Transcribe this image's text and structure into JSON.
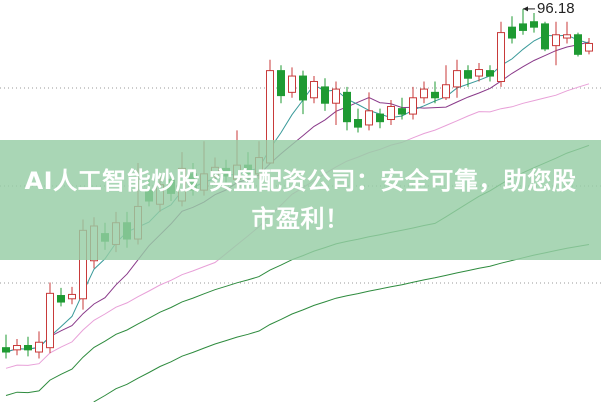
{
  "banner": {
    "line1": "AI人工智能炒股 实盘配资公司：安全可靠，助您股",
    "line2": "市盈利！"
  },
  "chart_data": {
    "type": "candlestick",
    "title": "",
    "high_label": "96.18",
    "ylim": [
      60,
      97
    ],
    "grid": "dotted-horizontal",
    "colors": {
      "up": "#c83a3a",
      "down": "#1e9a32",
      "ma5": "#3a9a9a",
      "ma10": "#8a3a8a",
      "ma20": "#e8a0d8",
      "ma_long": "#2e8b3e"
    },
    "candles": [
      [
        65.0,
        64.6,
        66.2,
        64.0
      ],
      [
        64.8,
        65.2,
        65.8,
        64.3
      ],
      [
        65.2,
        64.8,
        66.0,
        64.2
      ],
      [
        64.6,
        65.5,
        66.5,
        64.0
      ],
      [
        65.0,
        70.0,
        71.0,
        64.5
      ],
      [
        69.8,
        69.2,
        70.5,
        68.8
      ],
      [
        69.5,
        69.9,
        70.6,
        69.0
      ],
      [
        69.5,
        75.8,
        76.8,
        68.5
      ],
      [
        73.0,
        76.2,
        77.0,
        72.3
      ],
      [
        75.5,
        74.8,
        76.5,
        74.0
      ],
      [
        74.5,
        76.5,
        77.5,
        73.8
      ],
      [
        76.5,
        75.0,
        77.5,
        74.2
      ],
      [
        75.0,
        78.0,
        82.0,
        74.5
      ],
      [
        79.5,
        78.5,
        80.5,
        78.0
      ],
      [
        78.2,
        80.0,
        81.0,
        77.5
      ],
      [
        80.5,
        79.2,
        81.0,
        78.5
      ],
      [
        78.5,
        81.5,
        83.0,
        78.0
      ],
      [
        81.0,
        79.5,
        82.0,
        79.0
      ],
      [
        79.5,
        81.0,
        84.0,
        79.0
      ],
      [
        80.8,
        81.6,
        82.5,
        80.0
      ],
      [
        81.5,
        80.8,
        82.3,
        80.2
      ],
      [
        80.5,
        81.8,
        85.0,
        80.0
      ],
      [
        81.8,
        81.0,
        83.0,
        80.5
      ],
      [
        81.0,
        82.5,
        84.0,
        80.5
      ],
      [
        82.0,
        90.5,
        91.5,
        82.0
      ],
      [
        90.5,
        88.2,
        91.0,
        87.5
      ],
      [
        88.5,
        90.0,
        90.8,
        88.0
      ],
      [
        90.0,
        87.8,
        90.5,
        86.5
      ],
      [
        88.0,
        89.5,
        90.0,
        87.5
      ],
      [
        89.0,
        87.5,
        89.8,
        86.8
      ],
      [
        87.5,
        88.8,
        89.5,
        85.5
      ],
      [
        88.5,
        85.8,
        89.0,
        85.0
      ],
      [
        86.0,
        85.3,
        87.0,
        84.8
      ],
      [
        85.5,
        86.8,
        88.5,
        85.0
      ],
      [
        86.5,
        85.8,
        87.0,
        85.2
      ],
      [
        86.0,
        87.2,
        87.8,
        85.5
      ],
      [
        87.0,
        86.5,
        88.0,
        86.0
      ],
      [
        86.5,
        88.0,
        89.0,
        86.0
      ],
      [
        88.0,
        88.8,
        89.5,
        87.5
      ],
      [
        88.5,
        88.0,
        89.5,
        87.5
      ],
      [
        88.0,
        89.2,
        91.0,
        87.8
      ],
      [
        89.0,
        90.5,
        91.5,
        88.0
      ],
      [
        90.5,
        89.8,
        91.0,
        89.0
      ],
      [
        90.0,
        90.6,
        91.2,
        89.5
      ],
      [
        90.5,
        90.0,
        91.0,
        89.5
      ],
      [
        89.5,
        94.0,
        95.0,
        89.0
      ],
      [
        94.5,
        93.5,
        95.5,
        93.0
      ],
      [
        94.8,
        94.2,
        96.18,
        93.8
      ],
      [
        95.0,
        94.5,
        95.8,
        94.0
      ],
      [
        94.8,
        92.5,
        95.0,
        92.3
      ],
      [
        92.8,
        93.8,
        95.0,
        91.0
      ],
      [
        93.5,
        93.8,
        95.0,
        93.0
      ],
      [
        93.8,
        92.0,
        94.0,
        91.8
      ],
      [
        92.3,
        93.0,
        93.5,
        92.0
      ]
    ]
  }
}
